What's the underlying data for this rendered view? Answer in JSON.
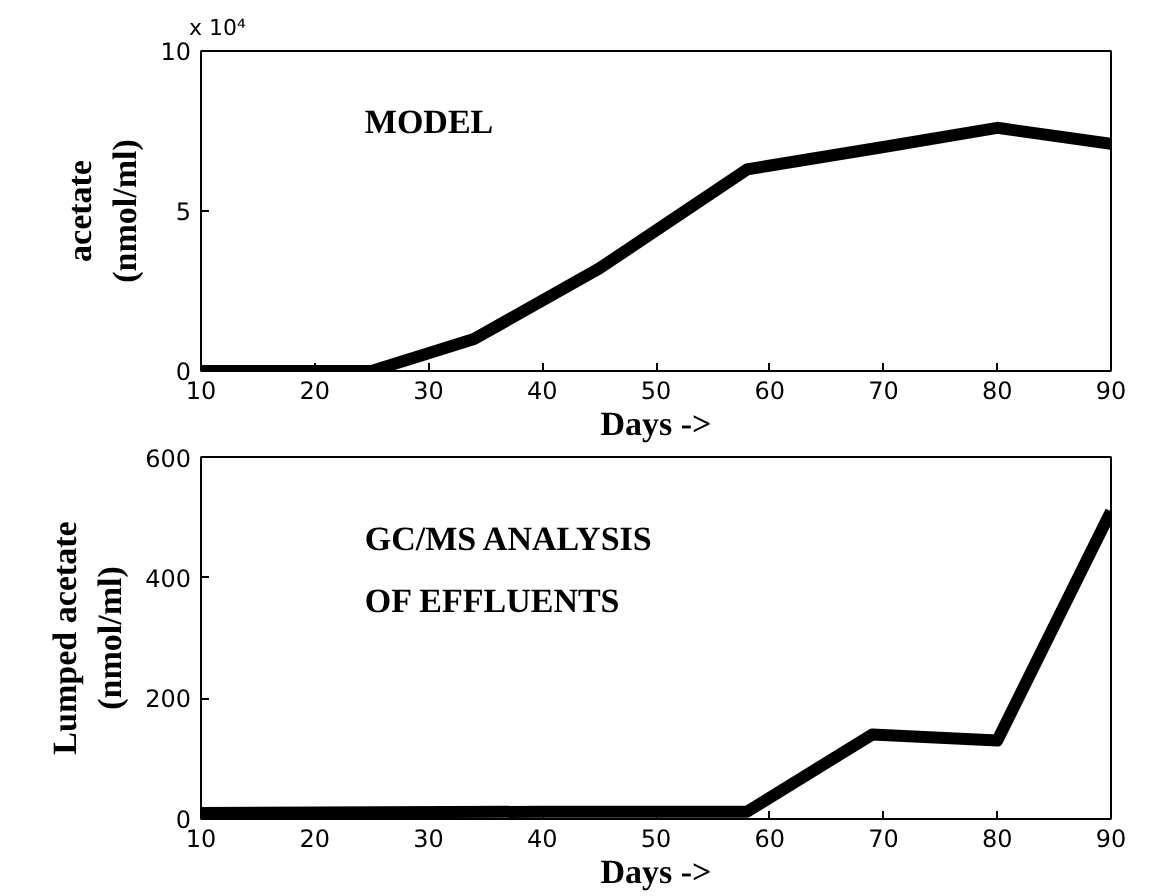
{
  "chart_data": [
    {
      "type": "line",
      "xlabel": "Days ->",
      "ylabel": "acetate\n(nmol/ml)",
      "annotations": [
        "MODEL",
        "x 10⁴"
      ],
      "x": [
        10,
        25,
        34,
        45,
        58,
        70,
        80,
        90
      ],
      "series": [
        {
          "color": "#000000",
          "values": [
            0,
            0,
            1.0,
            3.2,
            6.3,
            7.0,
            7.6,
            7.1
          ]
        }
      ],
      "xlim": [
        10,
        90
      ],
      "xticks": [
        10,
        20,
        30,
        40,
        50,
        60,
        70,
        80,
        90
      ],
      "ylim": [
        0,
        10
      ],
      "yticks": [
        0,
        5,
        10
      ],
      "line_style": "solid"
    },
    {
      "type": "line",
      "xlabel": "Days ->",
      "ylabel": "Lumped acetate\n(nmol/ml)",
      "annotations": [
        "GC/MS ANALYSIS\nOF EFFLUENTS"
      ],
      "x": [
        10,
        40,
        58,
        69,
        80,
        90
      ],
      "series": [
        {
          "color": "#000000",
          "values": [
            10,
            12,
            12,
            140,
            130,
            510
          ]
        }
      ],
      "xlim": [
        10,
        90
      ],
      "xticks": [
        10,
        20,
        30,
        40,
        50,
        60,
        70,
        80,
        90
      ],
      "ylim": [
        0,
        600
      ],
      "yticks": [
        0,
        200,
        400,
        600
      ],
      "line_style": "solid"
    }
  ]
}
